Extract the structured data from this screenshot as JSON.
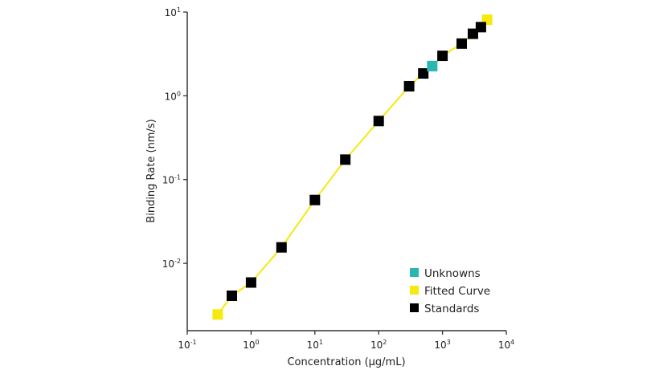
{
  "chart_data": {
    "type": "scatter",
    "title": "",
    "xlabel": "Concentration (µg/mL)",
    "ylabel": "Binding Rate (nm/s)",
    "xscale": "log",
    "yscale": "log",
    "xlim": [
      0.1,
      10000
    ],
    "ylim": [
      0.00157,
      10
    ],
    "grid": false,
    "legend_position": "bottom-right",
    "x_ticks": [
      {
        "exp": -1,
        "label": "10",
        "sup": "-1"
      },
      {
        "exp": 0,
        "label": "10",
        "sup": "0"
      },
      {
        "exp": 1,
        "label": "10",
        "sup": "1"
      },
      {
        "exp": 2,
        "label": "10",
        "sup": "2"
      },
      {
        "exp": 3,
        "label": "10",
        "sup": "3"
      },
      {
        "exp": 4,
        "label": "10",
        "sup": "4"
      }
    ],
    "y_ticks": [
      {
        "exp": -2,
        "label": "10",
        "sup": "-2"
      },
      {
        "exp": -1,
        "label": "10",
        "sup": "-1"
      },
      {
        "exp": 0,
        "label": "10",
        "sup": "0"
      },
      {
        "exp": 1,
        "label": "10",
        "sup": "1"
      }
    ],
    "series": [
      {
        "name": "Unknowns",
        "color": "#2ab7b4",
        "x": [
          690
        ],
        "y": [
          2.26
        ]
      },
      {
        "name": "Fitted Curve",
        "color": "#f5e90d",
        "line": true,
        "x": [
          0.3,
          0.5,
          1,
          3,
          10,
          30,
          100,
          300,
          500,
          1000,
          2000,
          3000,
          4000,
          5000
        ],
        "y": [
          0.00245,
          0.0041,
          0.0059,
          0.0155,
          0.057,
          0.173,
          0.5,
          1.3,
          1.85,
          3.0,
          4.2,
          5.5,
          6.6,
          8.1
        ],
        "marker_x": [
          0.3,
          5000
        ],
        "marker_y": [
          0.00245,
          8.1
        ]
      },
      {
        "name": "Standards",
        "color": "#000000",
        "x": [
          0.5,
          1,
          3,
          10,
          30,
          100,
          300,
          500,
          1000,
          2000,
          3000,
          4000
        ],
        "y": [
          0.0041,
          0.0059,
          0.0155,
          0.057,
          0.173,
          0.5,
          1.3,
          1.85,
          3.0,
          4.2,
          5.5,
          6.6
        ]
      }
    ]
  }
}
